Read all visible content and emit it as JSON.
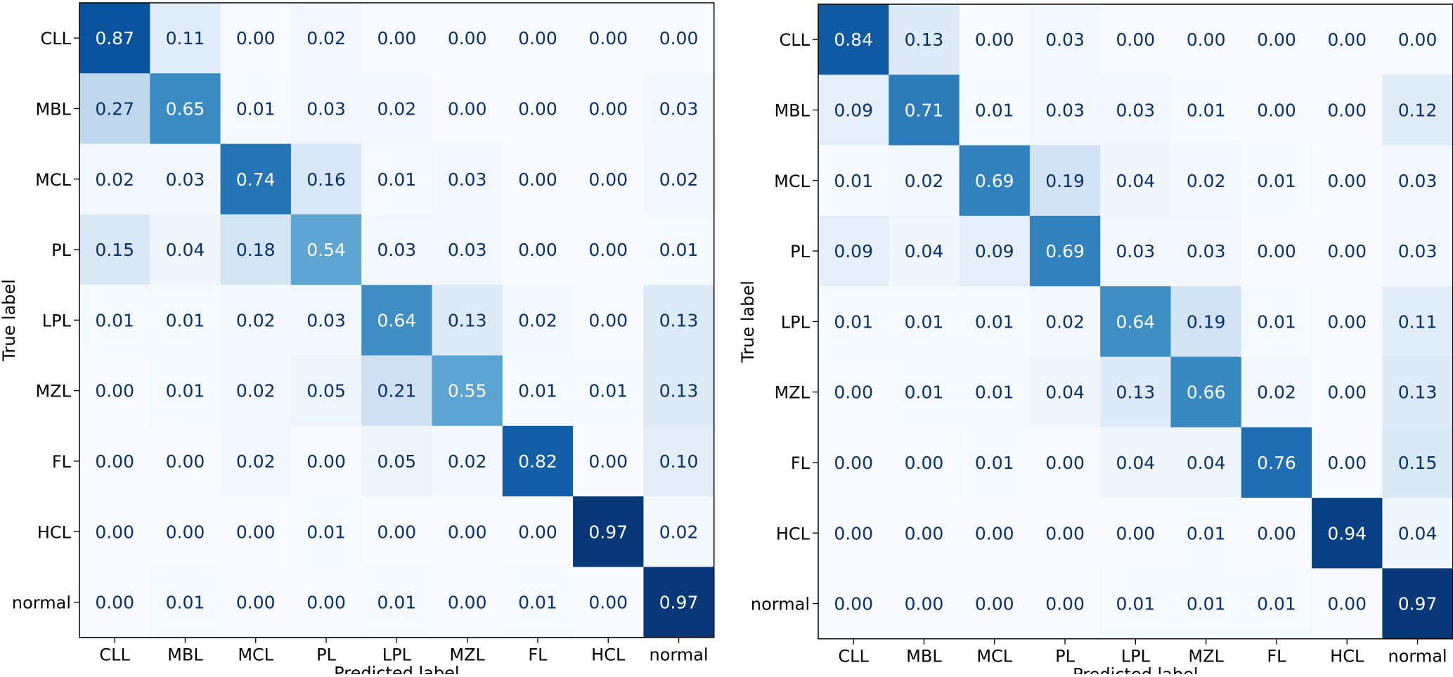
{
  "chart_data": [
    {
      "type": "heatmap",
      "title": "",
      "xlabel": "Predicted label",
      "ylabel": "True label",
      "x_categories": [
        "CLL",
        "MBL",
        "MCL",
        "PL",
        "LPL",
        "MZL",
        "FL",
        "HCL",
        "normal"
      ],
      "y_categories": [
        "CLL",
        "MBL",
        "MCL",
        "PL",
        "LPL",
        "MZL",
        "FL",
        "HCL",
        "normal"
      ],
      "colormap": "Blues",
      "value_range": [
        0,
        1
      ],
      "values": [
        [
          0.87,
          0.11,
          0.0,
          0.02,
          0.0,
          0.0,
          0.0,
          0.0,
          0.0
        ],
        [
          0.27,
          0.65,
          0.01,
          0.03,
          0.02,
          0.0,
          0.0,
          0.0,
          0.03
        ],
        [
          0.02,
          0.03,
          0.74,
          0.16,
          0.01,
          0.03,
          0.0,
          0.0,
          0.02
        ],
        [
          0.15,
          0.04,
          0.18,
          0.54,
          0.03,
          0.03,
          0.0,
          0.0,
          0.01
        ],
        [
          0.01,
          0.01,
          0.02,
          0.03,
          0.64,
          0.13,
          0.02,
          0.0,
          0.13
        ],
        [
          0.0,
          0.01,
          0.02,
          0.05,
          0.21,
          0.55,
          0.01,
          0.01,
          0.13
        ],
        [
          0.0,
          0.0,
          0.02,
          0.0,
          0.05,
          0.02,
          0.82,
          0.0,
          0.1
        ],
        [
          0.0,
          0.0,
          0.0,
          0.01,
          0.0,
          0.0,
          0.0,
          0.97,
          0.02
        ],
        [
          0.0,
          0.01,
          0.0,
          0.0,
          0.01,
          0.0,
          0.01,
          0.0,
          0.97
        ]
      ]
    },
    {
      "type": "heatmap",
      "title": "",
      "xlabel": "Predicted label",
      "ylabel": "True label",
      "x_categories": [
        "CLL",
        "MBL",
        "MCL",
        "PL",
        "LPL",
        "MZL",
        "FL",
        "HCL",
        "normal"
      ],
      "y_categories": [
        "CLL",
        "MBL",
        "MCL",
        "PL",
        "LPL",
        "MZL",
        "FL",
        "HCL",
        "normal"
      ],
      "colormap": "Blues",
      "value_range": [
        0,
        1
      ],
      "values": [
        [
          0.84,
          0.13,
          0.0,
          0.03,
          0.0,
          0.0,
          0.0,
          0.0,
          0.0
        ],
        [
          0.09,
          0.71,
          0.01,
          0.03,
          0.03,
          0.01,
          0.0,
          0.0,
          0.12
        ],
        [
          0.01,
          0.02,
          0.69,
          0.19,
          0.04,
          0.02,
          0.01,
          0.0,
          0.03
        ],
        [
          0.09,
          0.04,
          0.09,
          0.69,
          0.03,
          0.03,
          0.0,
          0.0,
          0.03
        ],
        [
          0.01,
          0.01,
          0.01,
          0.02,
          0.64,
          0.19,
          0.01,
          0.0,
          0.11
        ],
        [
          0.0,
          0.01,
          0.01,
          0.04,
          0.13,
          0.66,
          0.02,
          0.0,
          0.13
        ],
        [
          0.0,
          0.0,
          0.01,
          0.0,
          0.04,
          0.04,
          0.76,
          0.0,
          0.15
        ],
        [
          0.0,
          0.0,
          0.0,
          0.0,
          0.0,
          0.01,
          0.0,
          0.94,
          0.04
        ],
        [
          0.0,
          0.0,
          0.0,
          0.0,
          0.01,
          0.01,
          0.01,
          0.0,
          0.97
        ]
      ]
    }
  ]
}
